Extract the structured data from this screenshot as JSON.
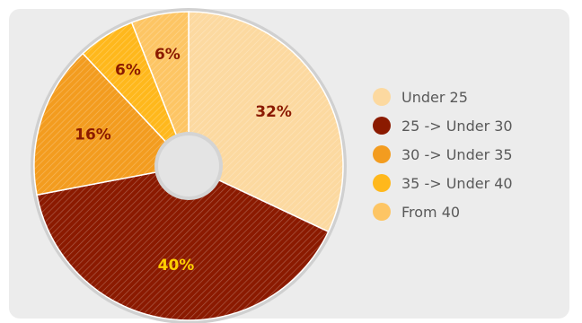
{
  "chart_data": {
    "type": "pie",
    "donut": true,
    "legend_position": "right",
    "slices": [
      {
        "label": "Under 25",
        "value": 32,
        "value_label": "32%",
        "color": "#FCD9A0",
        "label_color": "#8B1A00"
      },
      {
        "label": "25 -> Under 30",
        "value": 40,
        "value_label": "40%",
        "color": "#8B1A00",
        "label_color": "#FFD000"
      },
      {
        "label": "30 -> Under 35",
        "value": 16,
        "value_label": "16%",
        "color": "#F39C1F",
        "label_color": "#8B1A00"
      },
      {
        "label": "35 -> Under 40",
        "value": 6,
        "value_label": "6%",
        "color": "#FFB81C",
        "label_color": "#8B1A00"
      },
      {
        "label": "From 40",
        "value": 6,
        "value_label": "6%",
        "color": "#FDC564",
        "label_color": "#8B1A00"
      }
    ]
  }
}
